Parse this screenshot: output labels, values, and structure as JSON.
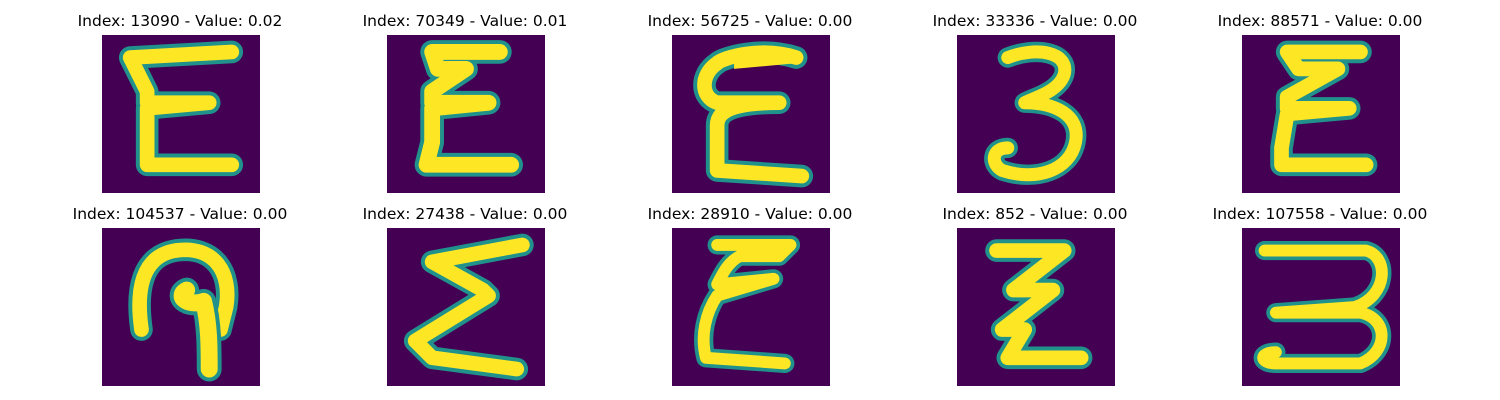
{
  "colors": {
    "background": "#440154",
    "stroke": "#fde725",
    "stroke_edge": "#21918c"
  },
  "samples": [
    {
      "title": "Index: 13090 - Value: 0.02",
      "glyph": "E"
    },
    {
      "title": "Index: 70349 - Value: 0.01",
      "glyph": "E"
    },
    {
      "title": "Index: 56725 - Value: 0.00",
      "glyph": "E"
    },
    {
      "title": "Index: 33336 - Value: 0.00",
      "glyph": "3"
    },
    {
      "title": "Index: 88571 - Value: 0.00",
      "glyph": "E"
    },
    {
      "title": "Index: 104537 - Value: 0.00",
      "glyph": "?"
    },
    {
      "title": "Index: 27438 - Value: 0.00",
      "glyph": "Σ"
    },
    {
      "title": "Index: 28910 - Value: 0.00",
      "glyph": "E"
    },
    {
      "title": "Index: 852 - Value: 0.00",
      "glyph": "Z"
    },
    {
      "title": "Index: 107558 - Value: 0.00",
      "glyph": "3"
    }
  ]
}
